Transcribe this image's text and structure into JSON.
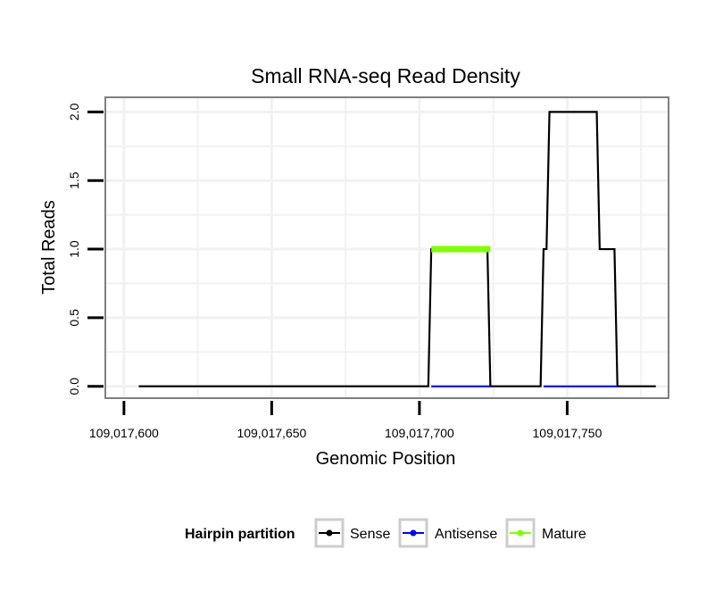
{
  "chart_data": {
    "type": "line",
    "title": "Small RNA-seq Read Density",
    "xlabel": "Genomic Position",
    "ylabel": "Total Reads",
    "xlim": [
      109017594,
      109017784
    ],
    "ylim": [
      -0.08,
      2.1
    ],
    "x_ticks": [
      109017600,
      109017650,
      109017700,
      109017750
    ],
    "x_tick_labels": [
      "109,017,600",
      "109,017,650",
      "109,017,700",
      "109,017,750"
    ],
    "y_ticks": [
      0.0,
      0.5,
      1.0,
      1.5,
      2.0
    ],
    "y_tick_labels": [
      "0.0",
      "0.5",
      "1.0",
      "1.5",
      "2.0"
    ],
    "grid": true,
    "legend": {
      "title": "Hairpin partition",
      "position": "bottom",
      "entries": [
        "Sense",
        "Antisense",
        "Mature"
      ]
    },
    "series": [
      {
        "name": "Sense",
        "color": "#000000",
        "x": [
          109017605,
          109017703,
          109017704,
          109017723,
          109017724,
          109017741,
          109017742,
          109017743,
          109017744,
          109017760,
          109017761,
          109017766,
          109017767,
          109017780
        ],
        "y": [
          0,
          0,
          1,
          1,
          0,
          0,
          1,
          1,
          2,
          2,
          1,
          1,
          0,
          0
        ]
      },
      {
        "name": "Antisense",
        "color": "#0000ff",
        "x": [
          109017704,
          109017724,
          109017742,
          109017767
        ],
        "y": [
          0,
          0,
          0,
          0
        ],
        "segments": [
          [
            0,
            1
          ],
          [
            2,
            3
          ]
        ]
      },
      {
        "name": "Mature",
        "color": "#7fff00",
        "x": [
          109017704,
          109017724
        ],
        "y": [
          1,
          1
        ]
      }
    ]
  }
}
